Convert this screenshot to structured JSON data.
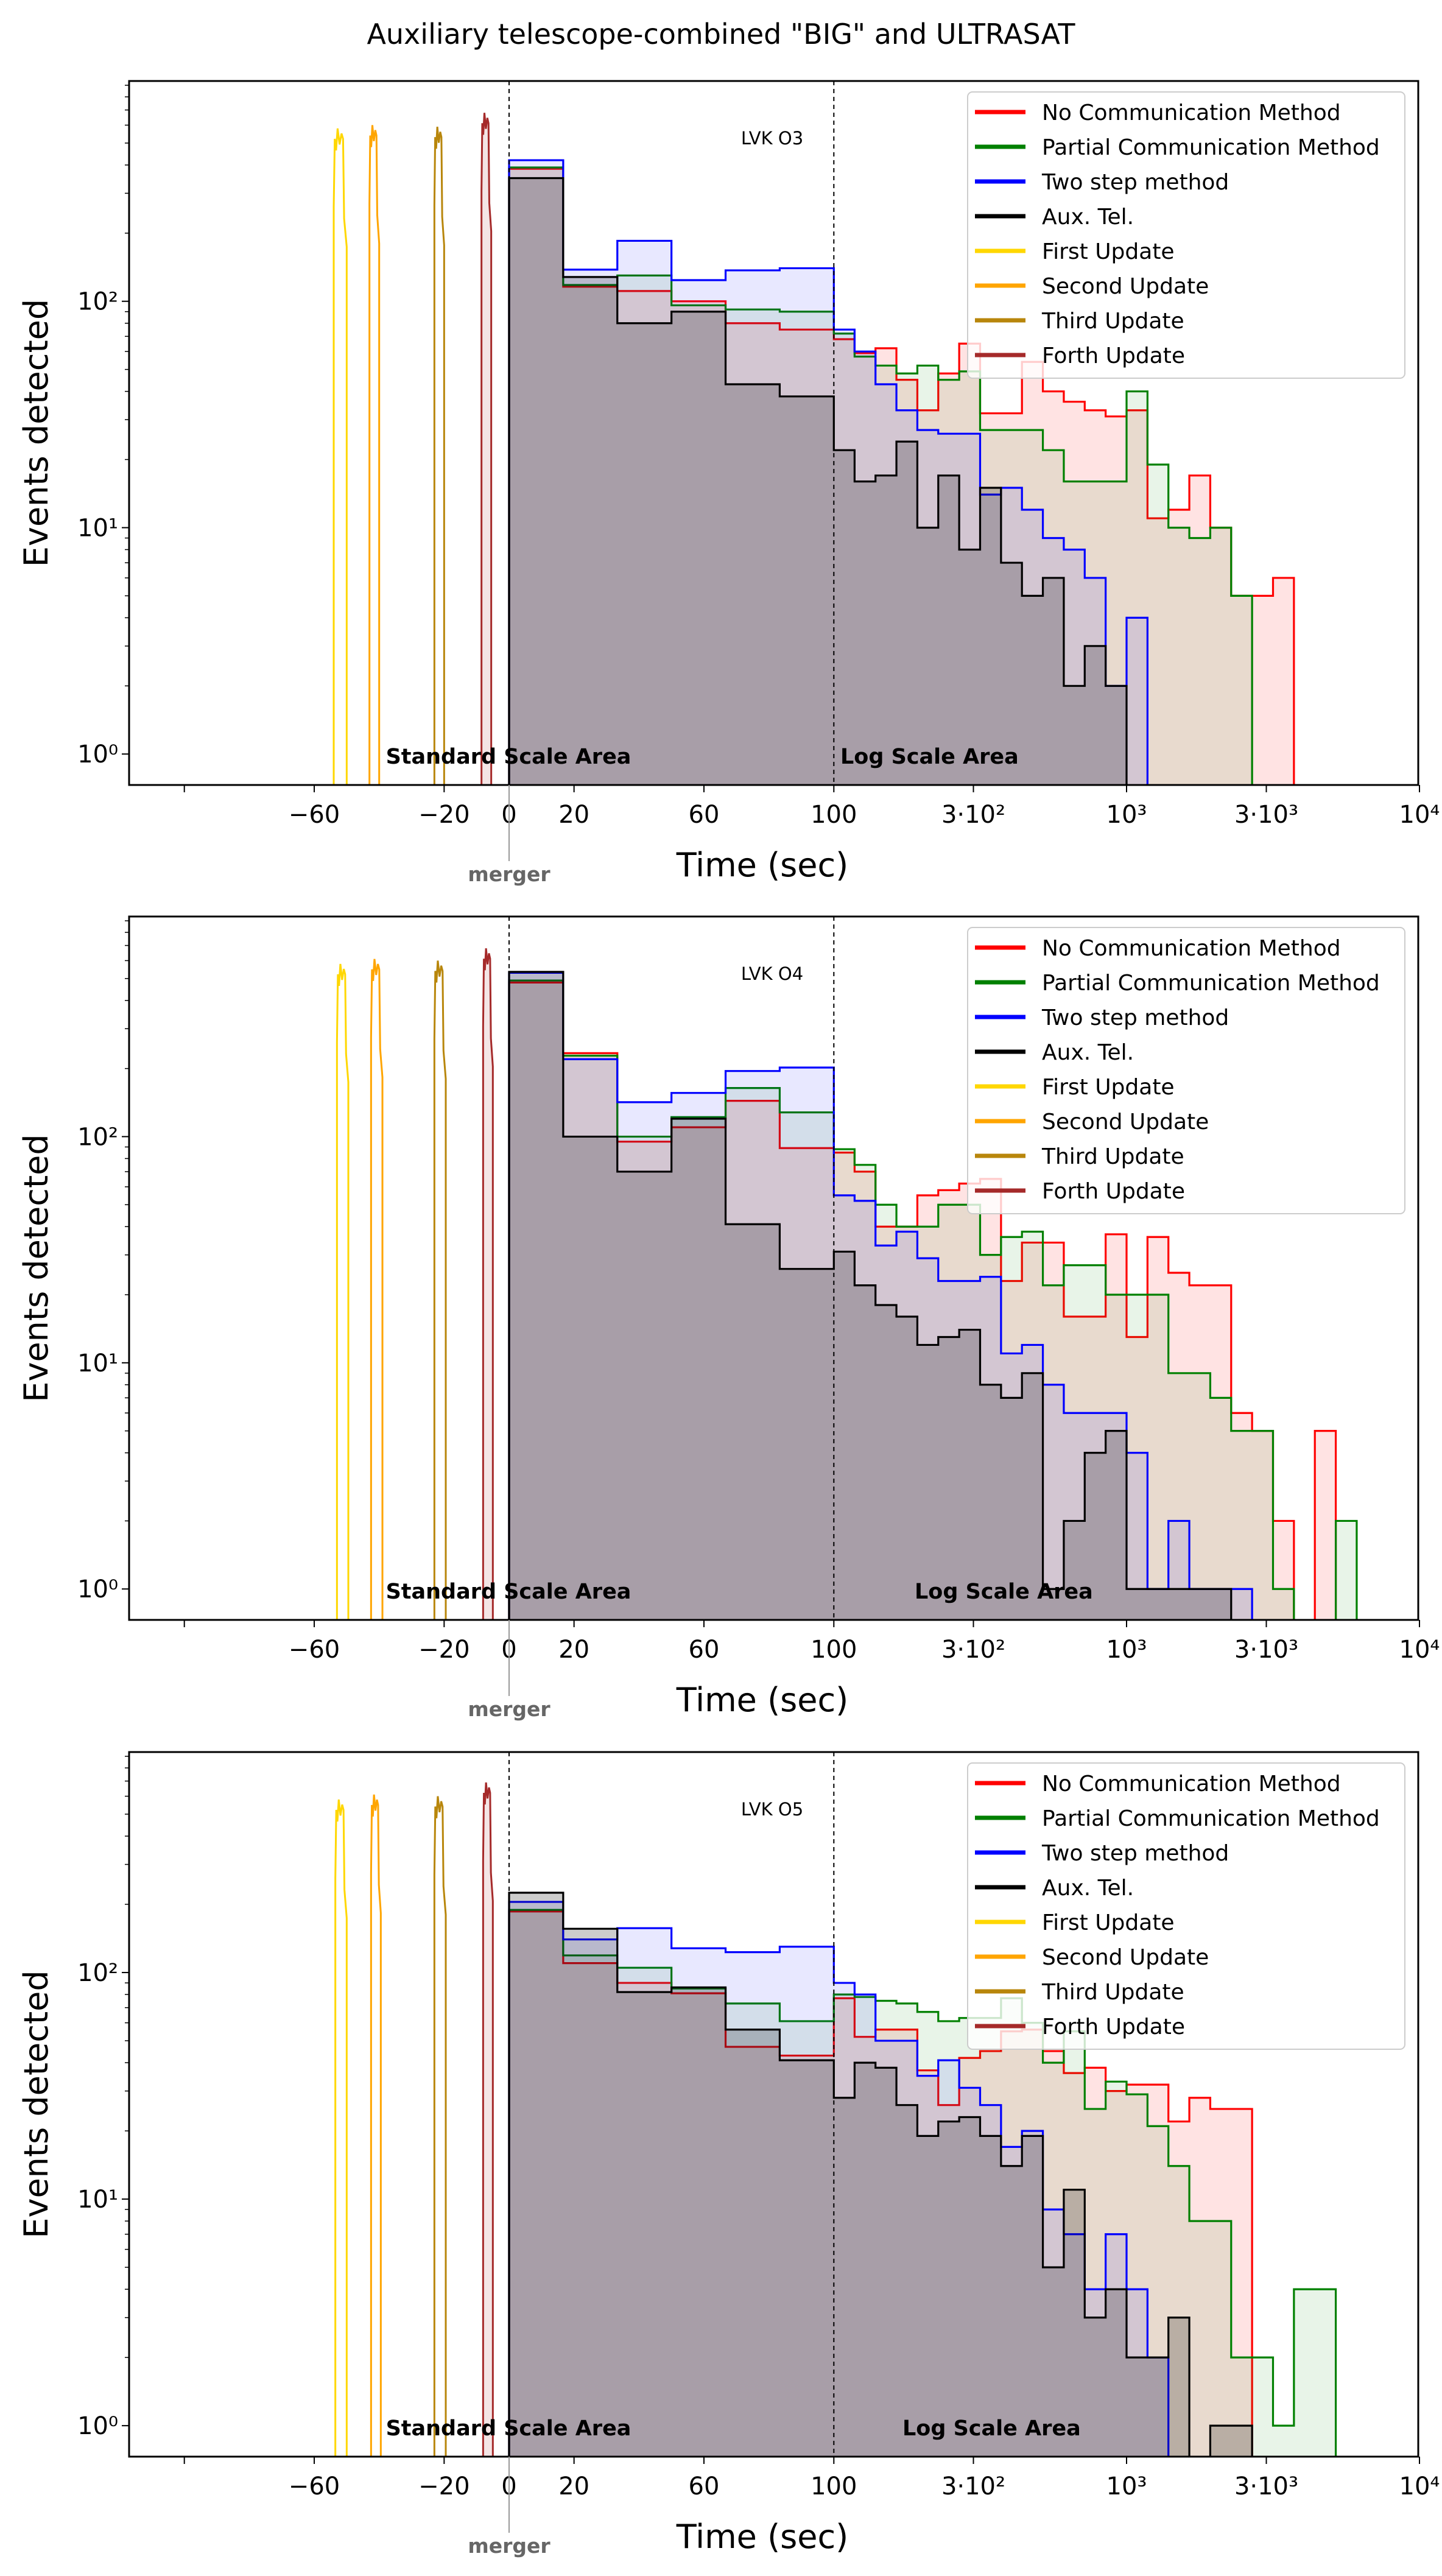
{
  "title": "Auxiliary telescope-combined \"BIG\" and ULTRASAT",
  "legend": [
    {
      "label": "No Communication Method",
      "color": "#ff0000"
    },
    {
      "label": "Partial Communication Method",
      "color": "#008000"
    },
    {
      "label": "Two step method",
      "color": "#0000ff"
    },
    {
      "label": "Aux. Tel.",
      "color": "#000000"
    },
    {
      "label": "First Update",
      "color": "#ffd700"
    },
    {
      "label": "Second Update",
      "color": "#ffa500"
    },
    {
      "label": "Third Update",
      "color": "#b8860b"
    },
    {
      "label": "Forth Update",
      "color": "#a52a2a"
    }
  ],
  "chart_data": [
    {
      "type": "bar",
      "subtype": "step-histogram",
      "annotation": "LVK O3",
      "xlabel": "Time (sec)",
      "ylabel": "Events detected",
      "xscale": "linear from -117 to 100, log from 100 to 10^4",
      "yscale": "log",
      "ylim": [
        0.73,
        940
      ],
      "x_ticks": [
        {
          "v": -100,
          "label": ""
        },
        {
          "v": -60,
          "label": "−60"
        },
        {
          "v": -20,
          "label": "−20"
        },
        {
          "v": 0,
          "label": "0"
        },
        {
          "v": 20,
          "label": "20"
        },
        {
          "v": 60,
          "label": "60"
        },
        {
          "v": 100,
          "label": "100"
        },
        {
          "v": 300,
          "label": "3·10²"
        },
        {
          "v": 1000,
          "label": "10³"
        },
        {
          "v": 3000,
          "label": "3·10³"
        },
        {
          "v": 10000,
          "label": "10⁴"
        }
      ],
      "y_ticks": [
        {
          "v": 1,
          "label": "10⁰"
        },
        {
          "v": 10,
          "label": "10¹"
        },
        {
          "v": 100,
          "label": "10²"
        }
      ],
      "region_labels": {
        "standard": "Standard Scale Area",
        "log": "Log Scale Area"
      },
      "merger_label": "merger",
      "linear_bins": "6 bins from 0 to 100 s",
      "log_bins": "1/14-decade bins from 100 s",
      "series": [
        {
          "name": "No Communication Method",
          "linear": [
            385,
            116,
            111,
            100,
            80,
            75
          ],
          "log": [
            68,
            59,
            62,
            45,
            33,
            48,
            65,
            32,
            32,
            54,
            40,
            36,
            33,
            31,
            33,
            11,
            12,
            17,
            10,
            5,
            5,
            6
          ]
        },
        {
          "name": "Partial Communication Method",
          "linear": [
            390,
            118,
            130,
            96,
            92,
            90
          ],
          "log": [
            72,
            57,
            52,
            48,
            52,
            45,
            49,
            27,
            27,
            27,
            22,
            16,
            16,
            16,
            40,
            19,
            10,
            9,
            10,
            5
          ]
        },
        {
          "name": "Two step method",
          "linear": [
            420,
            138,
            185,
            124,
            137,
            140
          ],
          "log": [
            75,
            60,
            43,
            33,
            27,
            26,
            26,
            14,
            15,
            12,
            9,
            8,
            6,
            2,
            4
          ]
        },
        {
          "name": "Aux. Tel.",
          "linear": [
            350,
            128,
            80,
            90,
            43,
            38
          ],
          "log": [
            22,
            16,
            17,
            24,
            10,
            17,
            8,
            15,
            7,
            5,
            6,
            2,
            3,
            2
          ]
        }
      ],
      "updates": [
        {
          "name": "First Update",
          "start": -54,
          "end": -50,
          "peak": 580
        },
        {
          "name": "Second Update",
          "start": -43,
          "end": -40,
          "peak": 600
        },
        {
          "name": "Third Update",
          "start": -23,
          "end": -20,
          "peak": 590
        },
        {
          "name": "Forth Update",
          "start": -8.5,
          "end": -5.5,
          "peak": 680
        }
      ]
    },
    {
      "type": "bar",
      "subtype": "step-histogram",
      "annotation": "LVK O4",
      "xlabel": "Time (sec)",
      "ylabel": "Events detected",
      "xscale": "linear from -117 to 100, log from 100 to 10^4",
      "yscale": "log",
      "ylim": [
        0.73,
        940
      ],
      "x_ticks": [
        {
          "v": -100,
          "label": ""
        },
        {
          "v": -60,
          "label": "−60"
        },
        {
          "v": -20,
          "label": "−20"
        },
        {
          "v": 0,
          "label": "0"
        },
        {
          "v": 20,
          "label": "20"
        },
        {
          "v": 60,
          "label": "60"
        },
        {
          "v": 100,
          "label": "100"
        },
        {
          "v": 300,
          "label": "3·10²"
        },
        {
          "v": 1000,
          "label": "10³"
        },
        {
          "v": 3000,
          "label": "3·10³"
        },
        {
          "v": 10000,
          "label": "10⁴"
        }
      ],
      "y_ticks": [
        {
          "v": 1,
          "label": "10⁰"
        },
        {
          "v": 10,
          "label": "10¹"
        },
        {
          "v": 100,
          "label": "10²"
        }
      ],
      "region_labels": {
        "standard": "Standard Scale Area",
        "log": "Log Scale Area"
      },
      "merger_label": "merger",
      "linear_bins": "6 bins from 0 to 100 s",
      "log_bins": "1/14-decade bins from 100 s",
      "series": [
        {
          "name": "No Communication Method",
          "linear": [
            480,
            234,
            95,
            110,
            144,
            89
          ],
          "log": [
            85,
            70,
            40,
            40,
            55,
            58,
            62,
            65,
            23,
            34,
            34,
            16,
            16,
            37,
            13,
            36,
            25,
            22,
            22,
            6,
            5,
            2,
            0,
            5
          ]
        },
        {
          "name": "Partial Communication Method",
          "linear": [
            490,
            228,
            100,
            122,
            164,
            128
          ],
          "log": [
            88,
            75,
            50,
            40,
            40,
            50,
            50,
            30,
            36,
            38,
            22,
            27,
            27,
            20,
            20,
            20,
            9,
            9,
            7,
            5,
            5,
            1,
            0,
            0,
            2
          ]
        },
        {
          "name": "Two step method",
          "linear": [
            530,
            220,
            142,
            156,
            195,
            202
          ],
          "log": [
            55,
            52,
            33,
            38,
            29,
            23,
            23,
            24,
            11,
            12,
            8,
            6,
            6,
            6,
            4,
            1,
            2,
            1,
            1,
            1
          ]
        },
        {
          "name": "Aux. Tel.",
          "linear": [
            535,
            100,
            70,
            120,
            41,
            26
          ],
          "log": [
            31,
            22,
            18,
            16,
            12,
            13,
            14,
            8,
            7,
            9,
            1,
            2,
            4,
            5,
            1,
            1,
            1,
            1,
            1
          ]
        }
      ],
      "updates": [
        {
          "name": "First Update",
          "start": -53,
          "end": -49.5,
          "peak": 580
        },
        {
          "name": "Second Update",
          "start": -42.5,
          "end": -39,
          "peak": 610
        },
        {
          "name": "Third Update",
          "start": -23,
          "end": -19.5,
          "peak": 600
        },
        {
          "name": "Forth Update",
          "start": -8,
          "end": -5,
          "peak": 680
        }
      ]
    },
    {
      "type": "bar",
      "subtype": "step-histogram",
      "annotation": "LVK O5",
      "xlabel": "Time (sec)",
      "ylabel": "Events detected",
      "xscale": "linear from -117 to 100, log from 100 to 10^4",
      "yscale": "log",
      "ylim": [
        0.73,
        940
      ],
      "x_ticks": [
        {
          "v": -100,
          "label": ""
        },
        {
          "v": -60,
          "label": "−60"
        },
        {
          "v": -20,
          "label": "−20"
        },
        {
          "v": 0,
          "label": "0"
        },
        {
          "v": 20,
          "label": "20"
        },
        {
          "v": 60,
          "label": "60"
        },
        {
          "v": 100,
          "label": "100"
        },
        {
          "v": 300,
          "label": "3·10²"
        },
        {
          "v": 1000,
          "label": "10³"
        },
        {
          "v": 3000,
          "label": "3·10³"
        },
        {
          "v": 10000,
          "label": "10⁴"
        }
      ],
      "y_ticks": [
        {
          "v": 1,
          "label": "10⁰"
        },
        {
          "v": 10,
          "label": "10¹"
        },
        {
          "v": 100,
          "label": "10²"
        }
      ],
      "region_labels": {
        "standard": "Standard Scale Area",
        "log": "Log Scale Area"
      },
      "merger_label": "merger",
      "linear_bins": "6 bins from 0 to 100 s",
      "log_bins": "1/14-decade bins from 100 s",
      "series": [
        {
          "name": "No Communication Method",
          "linear": [
            186,
            110,
            90,
            81,
            47,
            43
          ],
          "log": [
            77,
            52,
            56,
            56,
            37,
            26,
            42,
            45,
            55,
            56,
            45,
            36,
            38,
            30,
            32,
            32,
            22,
            28,
            25,
            25
          ]
        },
        {
          "name": "Partial Communication Method",
          "linear": [
            189,
            119,
            105,
            85,
            73,
            61
          ],
          "log": [
            80,
            78,
            75,
            73,
            67,
            61,
            63,
            63,
            77,
            60,
            40,
            55,
            25,
            33,
            29,
            21,
            14,
            8,
            8,
            2,
            2,
            1,
            4,
            4
          ]
        },
        {
          "name": "Two step method",
          "linear": [
            205,
            140,
            157,
            128,
            123,
            130
          ],
          "log": [
            90,
            80,
            50,
            50,
            35,
            41,
            31,
            26,
            17,
            20,
            9,
            7,
            4,
            7,
            4,
            2
          ]
        },
        {
          "name": "Aux. Tel.",
          "linear": [
            225,
            156,
            82,
            86,
            56,
            41
          ],
          "log": [
            28,
            40,
            38,
            26,
            19,
            22,
            23,
            19,
            14,
            19,
            5,
            11,
            3,
            4,
            2,
            2,
            3,
            0,
            1,
            1
          ]
        }
      ],
      "updates": [
        {
          "name": "First Update",
          "start": -53.5,
          "end": -50,
          "peak": 580
        },
        {
          "name": "Second Update",
          "start": -42.5,
          "end": -39.5,
          "peak": 610
        },
        {
          "name": "Third Update",
          "start": -23,
          "end": -19.5,
          "peak": 600
        },
        {
          "name": "Forth Update",
          "start": -8,
          "end": -5,
          "peak": 690
        }
      ]
    }
  ]
}
